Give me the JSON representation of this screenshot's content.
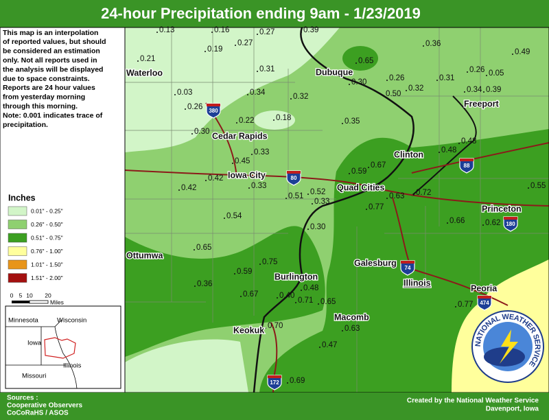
{
  "header": {
    "title": "24-hour Precipitation ending 9am - 1/23/2019"
  },
  "description": [
    "This map is an interpolation",
    "of reported values, but should",
    "be considered an estimation",
    "only. Not all reports used in",
    "the analysis will be displayed",
    "due to space constraints.",
    "Reports are 24 hour values",
    "from yesterday morning",
    "through this morning.",
    "Note: 0.001 indicates trace of",
    "precipitation."
  ],
  "legend": {
    "title": "Inches",
    "items": [
      {
        "label": "0.01\" - 0.25\"",
        "color": "#d2f5c8"
      },
      {
        "label": "0.26\" - 0.50\"",
        "color": "#8fd070"
      },
      {
        "label": "0.51\" - 0.75\"",
        "color": "#3c9f21"
      },
      {
        "label": "0.76\" - 1.00\"",
        "color": "#ffff9c"
      },
      {
        "label": "1.01\" - 1.50\"",
        "color": "#e8951a"
      },
      {
        "label": "1.51\" - 2.00\"",
        "color": "#a3100f"
      }
    ]
  },
  "scale": {
    "ticks": [
      "0",
      "5",
      "10",
      "20"
    ],
    "unit": "Miles"
  },
  "inset": {
    "states": [
      "Minnesota",
      "Wisconsin",
      "Iowa",
      "Illinois",
      "Missouri"
    ]
  },
  "stations": [
    "0.13",
    "0.16",
    "0.27",
    "0.39",
    "0.27",
    "0.19",
    "0.21",
    "0.36",
    "0.49",
    "0.65",
    "0.31",
    "0.26",
    "0.05",
    "0.26",
    "0.30",
    "0.31",
    "0.03",
    "0.34",
    "0.50",
    "0.32",
    "0.34",
    "0.39",
    "0.32",
    "0.26",
    "0.22",
    "0.18",
    "0.35",
    "0.30",
    "0.48",
    "0.48",
    "0.33",
    "0.45",
    "0.67",
    "0.59",
    "0.42",
    "0.42",
    "0.33",
    "0.55",
    "0.51",
    "0.52",
    "0.33",
    "0.63",
    "0.72",
    "0.77",
    "0.54",
    "0.66",
    "0.62",
    "0.30",
    "0.65",
    "0.75",
    "0.59",
    "0.36",
    "0.48",
    "0.40",
    "0.67",
    "0.71",
    "0.65",
    "0.77",
    "0.70",
    "0.63",
    "0.47",
    "0.69"
  ],
  "cities": [
    "Waterloo",
    "Dubuque",
    "Freeport",
    "Cedar Rapids",
    "Clinton",
    "Iowa City",
    "Quad Cities",
    "Princeton",
    "Ottumwa",
    "Galesburg",
    "Illinois",
    "Burlington",
    "Peoria",
    "Macomb",
    "Keokuk"
  ],
  "interstates": [
    "380",
    "80",
    "88",
    "180",
    "74",
    "474",
    "172"
  ],
  "logo": {
    "text": "NATIONAL WEATHER SERVICE"
  },
  "footer": {
    "sources": [
      "Sources :",
      "Cooperative Observers",
      "CoCoRaHS / ASOS"
    ],
    "credit": [
      "Created by the National Weather Service",
      "Davenport, Iowa"
    ]
  }
}
